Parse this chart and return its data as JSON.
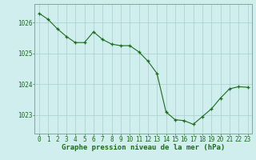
{
  "hours": [
    0,
    1,
    2,
    3,
    4,
    5,
    6,
    7,
    8,
    9,
    10,
    11,
    12,
    13,
    14,
    15,
    16,
    17,
    18,
    19,
    20,
    21,
    22,
    23
  ],
  "pressure": [
    1026.3,
    1026.1,
    1025.8,
    1025.55,
    1025.35,
    1025.35,
    1025.7,
    1025.45,
    1025.3,
    1025.25,
    1025.25,
    1025.05,
    1024.75,
    1024.35,
    1023.1,
    1022.85,
    1022.82,
    1022.7,
    1022.95,
    1023.2,
    1023.55,
    1023.85,
    1023.92,
    1023.9
  ],
  "line_color": "#1a6b1a",
  "marker_color": "#1a6b1a",
  "bg_color": "#d0eeee",
  "grid_color": "#aacccc",
  "ylabel_values": [
    1023,
    1024,
    1025,
    1026
  ],
  "ylim": [
    1022.4,
    1026.6
  ],
  "xlim": [
    -0.5,
    23.5
  ],
  "xlabel": "Graphe pression niveau de la mer (hPa)",
  "xlabel_fontsize": 6.5,
  "xlabel_color": "#1a6b1a",
  "tick_fontsize": 5.5,
  "tick_color": "#1a6b1a"
}
